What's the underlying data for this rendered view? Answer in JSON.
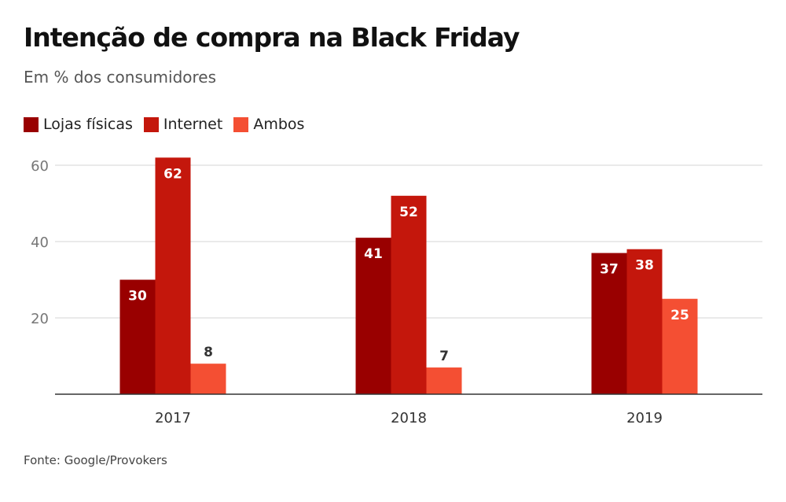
{
  "title": "Intenção de compra na Black Friday",
  "subtitle": "Em % dos consumidores",
  "source": "Fonte: Google/Provokers",
  "chart_data": {
    "type": "bar",
    "title": "Intenção de compra na Black Friday",
    "subtitle": "Em % dos consumidores",
    "categories": [
      "2017",
      "2018",
      "2019"
    ],
    "series": [
      {
        "name": "Lojas físicas",
        "color": "#990000",
        "values": [
          30,
          41,
          37
        ]
      },
      {
        "name": "Internet",
        "color": "#c4170c",
        "values": [
          62,
          52,
          38
        ]
      },
      {
        "name": "Ambos",
        "color": "#f44f33",
        "values": [
          8,
          7,
          25
        ]
      }
    ],
    "yticks": [
      20,
      40,
      60
    ],
    "ylim": [
      0,
      60
    ],
    "grid": true,
    "legend": "top-left",
    "data_labels": true
  }
}
